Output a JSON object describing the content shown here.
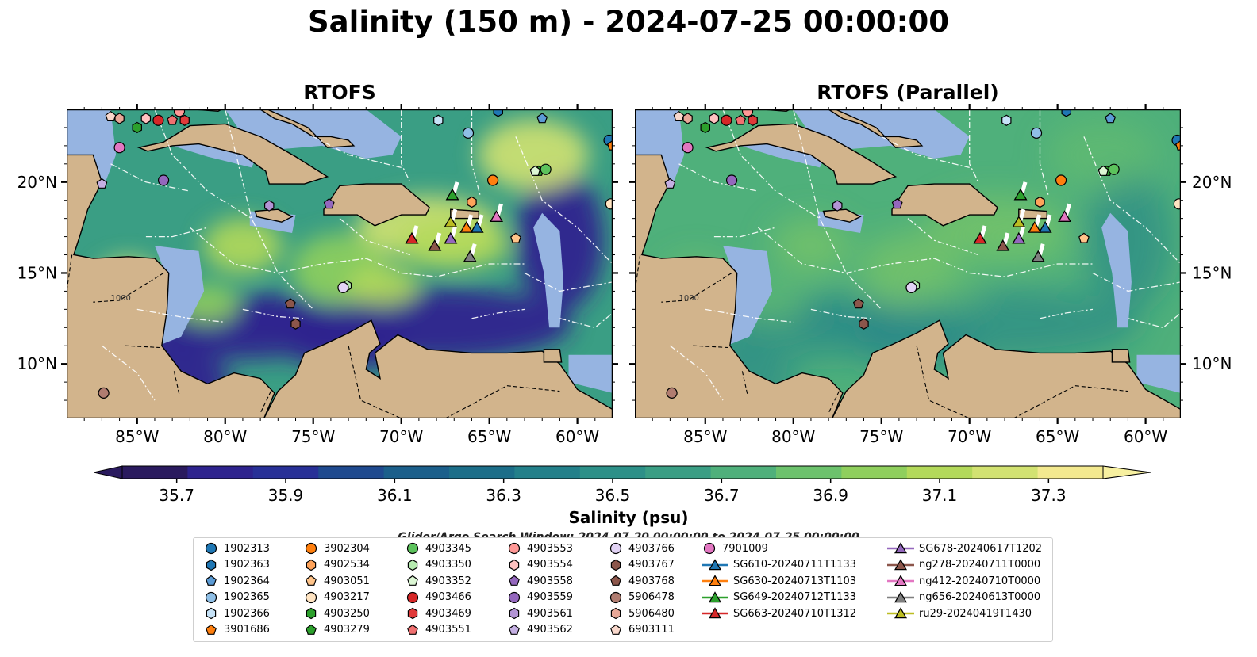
{
  "title": "Salinity (150 m) - 2024-07-25 00:00:00",
  "panels": [
    {
      "title": "RTOFS",
      "style": "high-contrast"
    },
    {
      "title": "RTOFS (Parallel)",
      "style": "smooth"
    }
  ],
  "map": {
    "lon_range": [
      -89,
      -58
    ],
    "lat_range": [
      7,
      24
    ],
    "lon_ticks": [
      "85°W",
      "80°W",
      "75°W",
      "70°W",
      "65°W",
      "60°W"
    ],
    "lat_ticks_left": [
      "20°N",
      "15°N",
      "10°N"
    ],
    "lat_ticks_right": [
      "20°N",
      "15°N",
      "10°N"
    ],
    "contour_label": "1000",
    "colors": {
      "land": "#d2b48c",
      "shelf": "#96b4e1",
      "eez_lines": "#ffffff"
    }
  },
  "colorbar": {
    "label": "Salinity (psu)",
    "ticks": [
      "35.7",
      "35.9",
      "36.1",
      "36.3",
      "36.5",
      "36.7",
      "36.9",
      "37.1",
      "37.3"
    ],
    "min": 35.6,
    "max": 37.4,
    "colormap": "haline",
    "colors": [
      "#2a1a5e",
      "#2e238e",
      "#283097",
      "#1f4a8f",
      "#1b5f8b",
      "#1c6e89",
      "#23808a",
      "#2d9088",
      "#3a9e84",
      "#4fb07b",
      "#6cc26c",
      "#8fcf5d",
      "#b3d95a",
      "#d2e271",
      "#f3e98f"
    ]
  },
  "search_window": "Glider/Argo Search Window: 2024-07-20 00:00:00 to 2024-07-25 00:00:00",
  "legend": {
    "columns": [
      [
        {
          "label": "1902313",
          "marker": "circle",
          "color": "#1f77b4"
        },
        {
          "label": "1902363",
          "marker": "hexagon",
          "color": "#1f77b4"
        },
        {
          "label": "1902364",
          "marker": "pentagon",
          "color": "#5b9bd5"
        },
        {
          "label": "1902365",
          "marker": "circle",
          "color": "#8fbfe6"
        },
        {
          "label": "1902366",
          "marker": "hexagon",
          "color": "#c6e2f7"
        },
        {
          "label": "3901686",
          "marker": "pentagon",
          "color": "#ff7f0e"
        }
      ],
      [
        {
          "label": "3902304",
          "marker": "circle",
          "color": "#ff7f0e"
        },
        {
          "label": "4902534",
          "marker": "hexagon",
          "color": "#ffa35a"
        },
        {
          "label": "4903051",
          "marker": "pentagon",
          "color": "#ffc48a"
        },
        {
          "label": "4903217",
          "marker": "circle",
          "color": "#ffe4c2"
        },
        {
          "label": "4903250",
          "marker": "hexagon",
          "color": "#2ca02c"
        },
        {
          "label": "4903279",
          "marker": "pentagon",
          "color": "#2ca02c"
        }
      ],
      [
        {
          "label": "4903345",
          "marker": "circle",
          "color": "#5cc25c"
        },
        {
          "label": "4903350",
          "marker": "hexagon",
          "color": "#b6ebb0"
        },
        {
          "label": "4903352",
          "marker": "pentagon",
          "color": "#dcf7d4"
        },
        {
          "label": "4903466",
          "marker": "circle",
          "color": "#d62728"
        },
        {
          "label": "4903469",
          "marker": "hexagon",
          "color": "#e03a3a"
        },
        {
          "label": "4903551",
          "marker": "pentagon",
          "color": "#f07070"
        }
      ],
      [
        {
          "label": "4903553",
          "marker": "circle",
          "color": "#ff9896"
        },
        {
          "label": "4903554",
          "marker": "hexagon",
          "color": "#ffc2c0"
        },
        {
          "label": "4903558",
          "marker": "pentagon",
          "color": "#9467bd"
        },
        {
          "label": "4903559",
          "marker": "circle",
          "color": "#9467bd"
        },
        {
          "label": "4903561",
          "marker": "hexagon",
          "color": "#b294d4"
        },
        {
          "label": "4903562",
          "marker": "pentagon",
          "color": "#c5b0e3"
        }
      ],
      [
        {
          "label": "4903766",
          "marker": "circle",
          "color": "#e2d3f5"
        },
        {
          "label": "4903767",
          "marker": "hexagon",
          "color": "#8c564b"
        },
        {
          "label": "4903768",
          "marker": "pentagon",
          "color": "#8c564b"
        },
        {
          "label": "5906478",
          "marker": "circle",
          "color": "#b07c70"
        },
        {
          "label": "5906480",
          "marker": "hexagon",
          "color": "#e8a898"
        },
        {
          "label": "6903111",
          "marker": "pentagon",
          "color": "#f9d8cc"
        }
      ],
      [
        {
          "label": "7901009",
          "marker": "circle",
          "color": "#e377c2"
        },
        {
          "label": "SG610-20240711T1133",
          "marker": "triangle-line",
          "color": "#1f77b4"
        },
        {
          "label": "SG630-20240713T1103",
          "marker": "triangle-line",
          "color": "#ff7f0e"
        },
        {
          "label": "SG649-20240712T1133",
          "marker": "triangle-line",
          "color": "#2ca02c"
        },
        {
          "label": "SG663-20240710T1312",
          "marker": "triangle-line",
          "color": "#d62728"
        }
      ],
      [
        {
          "label": "SG678-20240617T1202",
          "marker": "triangle-line",
          "color": "#9467bd"
        },
        {
          "label": "ng278-20240711T0000",
          "marker": "triangle-line",
          "color": "#8c564b"
        },
        {
          "label": "ng412-20240710T0000",
          "marker": "triangle-line",
          "color": "#e377c2"
        },
        {
          "label": "ng656-20240613T0000",
          "marker": "triangle-line",
          "color": "#7f7f7f"
        },
        {
          "label": "ru29-20240419T1430",
          "marker": "triangle-line",
          "color": "#bcbd22"
        }
      ]
    ]
  },
  "platforms": [
    {
      "id": "1902313",
      "lon": -58.2,
      "lat": 22.3
    },
    {
      "id": "1902363",
      "lon": -64.5,
      "lat": 23.9
    },
    {
      "id": "1902364",
      "lon": -62.0,
      "lat": 23.5
    },
    {
      "id": "1902365",
      "lon": -66.2,
      "lat": 22.7
    },
    {
      "id": "1902366",
      "lon": -67.9,
      "lat": 23.4
    },
    {
      "id": "3901686",
      "lon": -58.0,
      "lat": 22.0
    },
    {
      "id": "3902304",
      "lon": -64.8,
      "lat": 20.1
    },
    {
      "id": "4902534",
      "lon": -66.0,
      "lat": 18.9
    },
    {
      "id": "4903051",
      "lon": -63.5,
      "lat": 16.9
    },
    {
      "id": "4903217",
      "lon": -58.1,
      "lat": 18.8
    },
    {
      "id": "4903250",
      "lon": -85.0,
      "lat": 23.0
    },
    {
      "id": "4903279",
      "lon": -62.2,
      "lat": 20.6
    },
    {
      "id": "4903345",
      "lon": -61.8,
      "lat": 20.7
    },
    {
      "id": "4903350",
      "lon": -73.1,
      "lat": 14.3
    },
    {
      "id": "4903352",
      "lon": -62.4,
      "lat": 20.6
    },
    {
      "id": "4903466",
      "lon": -83.8,
      "lat": 23.4
    },
    {
      "id": "4903469",
      "lon": -82.3,
      "lat": 23.4
    },
    {
      "id": "4903551",
      "lon": -83.0,
      "lat": 23.4
    },
    {
      "id": "4903553",
      "lon": -82.6,
      "lat": 23.9
    },
    {
      "id": "4903554",
      "lon": -84.5,
      "lat": 23.5
    },
    {
      "id": "4903558",
      "lon": -74.1,
      "lat": 18.8
    },
    {
      "id": "4903559",
      "lon": -83.5,
      "lat": 20.1
    },
    {
      "id": "4903561",
      "lon": -77.5,
      "lat": 18.7
    },
    {
      "id": "4903562",
      "lon": -87.0,
      "lat": 19.9
    },
    {
      "id": "4903766",
      "lon": -73.3,
      "lat": 14.2
    },
    {
      "id": "4903767",
      "lon": -76.0,
      "lat": 12.2
    },
    {
      "id": "4903768",
      "lon": -76.3,
      "lat": 13.3
    },
    {
      "id": "5906478",
      "lon": -86.9,
      "lat": 8.4
    },
    {
      "id": "5906480",
      "lon": -86.0,
      "lat": 23.5
    },
    {
      "id": "6903111",
      "lon": -86.5,
      "lat": 23.6
    },
    {
      "id": "7901009",
      "lon": -86.0,
      "lat": 21.9
    }
  ],
  "gliders": [
    {
      "id": "SG610-20240711T1133",
      "lon": -65.7,
      "lat": 17.5
    },
    {
      "id": "SG630-20240713T1103",
      "lon": -66.3,
      "lat": 17.5
    },
    {
      "id": "SG649-20240712T1133",
      "lon": -67.1,
      "lat": 19.3
    },
    {
      "id": "SG663-20240710T1312",
      "lon": -69.4,
      "lat": 16.9
    },
    {
      "id": "SG678-20240617T1202",
      "lon": -67.2,
      "lat": 16.9
    },
    {
      "id": "ng278-20240711T0000",
      "lon": -68.1,
      "lat": 16.5
    },
    {
      "id": "ng412-20240710T0000",
      "lon": -64.6,
      "lat": 18.1
    },
    {
      "id": "ng656-20240613T0000",
      "lon": -66.1,
      "lat": 15.9
    },
    {
      "id": "ru29-20240419T1430",
      "lon": -67.2,
      "lat": 17.8
    }
  ]
}
